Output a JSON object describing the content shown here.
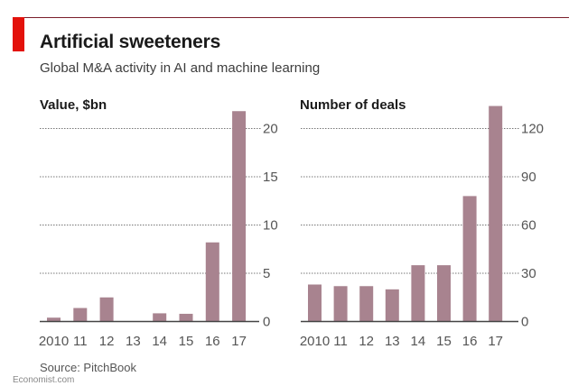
{
  "header": {
    "title": "Artificial sweeteners",
    "subtitle": "Global M&A activity in AI and machine learning"
  },
  "footer": {
    "source": "Source: PitchBook",
    "credit": "Economist.com"
  },
  "colors": {
    "bar": "#a8838f",
    "accent_red": "#e3120b",
    "grid": "#777777",
    "axis": "#444444"
  },
  "chart_data": [
    {
      "type": "bar",
      "title": "Value, $bn",
      "xlabel": "",
      "ylabel": "Value, $bn",
      "categories": [
        "2010",
        "11",
        "12",
        "13",
        "14",
        "15",
        "16",
        "17"
      ],
      "values": [
        0.4,
        1.4,
        2.5,
        0,
        0.85,
        0.8,
        8.2,
        21.8
      ],
      "ylim": [
        0,
        20
      ],
      "yticks": [
        0,
        5,
        10,
        15,
        20
      ],
      "ytick_labels": [
        "0",
        "5",
        "10",
        "15",
        "20"
      ],
      "grid": true,
      "y_axis_side": "right"
    },
    {
      "type": "bar",
      "title": "Number of deals",
      "xlabel": "",
      "ylabel": "Number of deals",
      "categories": [
        "2010",
        "11",
        "12",
        "13",
        "14",
        "15",
        "16",
        "17"
      ],
      "values": [
        23,
        22,
        22,
        20,
        35,
        35,
        78,
        134
      ],
      "ylim": [
        0,
        120
      ],
      "yticks": [
        0,
        30,
        60,
        90,
        120
      ],
      "ytick_labels": [
        "0",
        "30",
        "60",
        "90",
        "120"
      ],
      "grid": true,
      "y_axis_side": "right"
    }
  ]
}
